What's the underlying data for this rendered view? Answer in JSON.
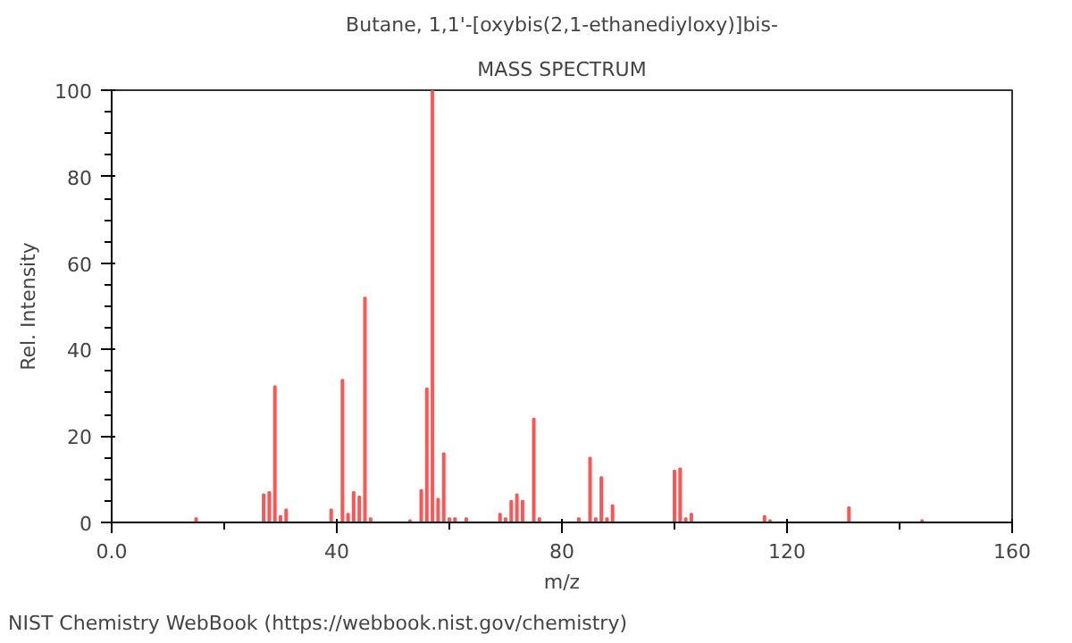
{
  "chart_data": {
    "type": "bar",
    "title": "Butane, 1,1'-[oxybis(2,1-ethanediyloxy)]bis-",
    "subtitle": "MASS SPECTRUM",
    "xlabel": "m/z",
    "ylabel": "Rel. Intensity",
    "x": [
      15,
      27,
      28,
      29,
      30,
      31,
      39,
      41,
      42,
      43,
      44,
      45,
      46,
      53,
      55,
      56,
      57,
      58,
      59,
      60,
      61,
      63,
      69,
      70,
      71,
      72,
      73,
      75,
      76,
      83,
      85,
      86,
      87,
      88,
      89,
      100,
      101,
      102,
      103,
      116,
      117,
      131,
      144
    ],
    "values": [
      1,
      6.5,
      7,
      31.5,
      1.5,
      3,
      3,
      33,
      2,
      7,
      6,
      52,
      1,
      0.5,
      7.5,
      31,
      100,
      5.5,
      16,
      1,
      1,
      1,
      2,
      1,
      5,
      6.5,
      5,
      24,
      1,
      1,
      15,
      1,
      10.5,
      1,
      4,
      12,
      12.5,
      1,
      2,
      1.5,
      0.5,
      3.5,
      0.5
    ],
    "color": "#ff5555",
    "xlim": [
      0,
      160
    ],
    "ylim": [
      0,
      100
    ],
    "xticks": [
      {
        "value": 0,
        "label": "0.0"
      },
      40,
      80,
      120,
      160
    ],
    "yticks": [
      0,
      20,
      40,
      60,
      80,
      100
    ],
    "grid": false,
    "annotations": [
      "NIST Chemistry WebBook (https://webbook.nist.gov/chemistry)"
    ]
  }
}
